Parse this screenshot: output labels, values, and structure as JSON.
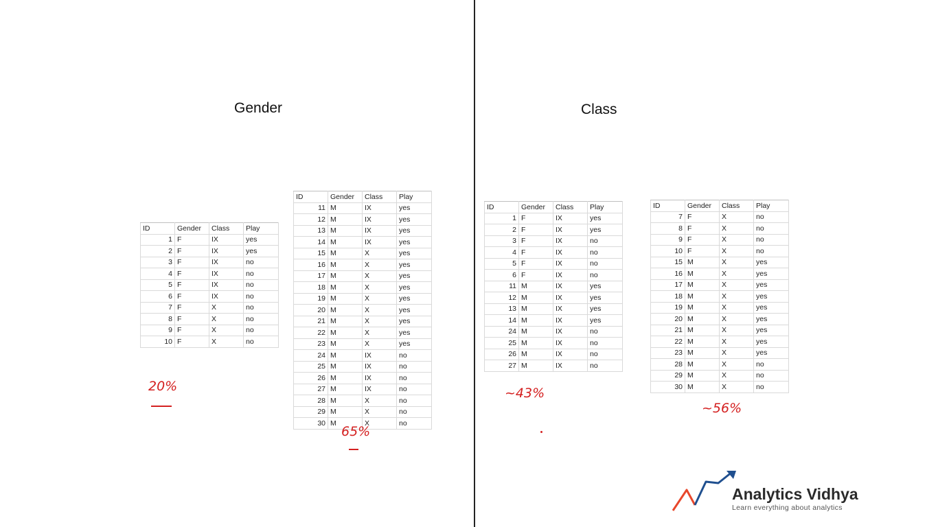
{
  "gender_panel": {
    "title": "Gender",
    "tables": [
      {
        "columns": [
          "ID",
          "Gender",
          "Class",
          "Play"
        ],
        "rows": [
          [
            "1",
            "F",
            "IX",
            "yes"
          ],
          [
            "2",
            "F",
            "IX",
            "yes"
          ],
          [
            "3",
            "F",
            "IX",
            "no"
          ],
          [
            "4",
            "F",
            "IX",
            "no"
          ],
          [
            "5",
            "F",
            "IX",
            "no"
          ],
          [
            "6",
            "F",
            "IX",
            "no"
          ],
          [
            "7",
            "F",
            "X",
            "no"
          ],
          [
            "8",
            "F",
            "X",
            "no"
          ],
          [
            "9",
            "F",
            "X",
            "no"
          ],
          [
            "10",
            "F",
            "X",
            "no"
          ]
        ]
      },
      {
        "columns": [
          "ID",
          "Gender",
          "Class",
          "Play"
        ],
        "rows": [
          [
            "11",
            "M",
            "IX",
            "yes"
          ],
          [
            "12",
            "M",
            "IX",
            "yes"
          ],
          [
            "13",
            "M",
            "IX",
            "yes"
          ],
          [
            "14",
            "M",
            "IX",
            "yes"
          ],
          [
            "15",
            "M",
            "X",
            "yes"
          ],
          [
            "16",
            "M",
            "X",
            "yes"
          ],
          [
            "17",
            "M",
            "X",
            "yes"
          ],
          [
            "18",
            "M",
            "X",
            "yes"
          ],
          [
            "19",
            "M",
            "X",
            "yes"
          ],
          [
            "20",
            "M",
            "X",
            "yes"
          ],
          [
            "21",
            "M",
            "X",
            "yes"
          ],
          [
            "22",
            "M",
            "X",
            "yes"
          ],
          [
            "23",
            "M",
            "X",
            "yes"
          ],
          [
            "24",
            "M",
            "IX",
            "no"
          ],
          [
            "25",
            "M",
            "IX",
            "no"
          ],
          [
            "26",
            "M",
            "IX",
            "no"
          ],
          [
            "27",
            "M",
            "IX",
            "no"
          ],
          [
            "28",
            "M",
            "X",
            "no"
          ],
          [
            "29",
            "M",
            "X",
            "no"
          ],
          [
            "30",
            "M",
            "X",
            "no"
          ]
        ]
      }
    ],
    "annotations": [
      "20%",
      "65%"
    ]
  },
  "class_panel": {
    "title": "Class",
    "tables": [
      {
        "columns": [
          "ID",
          "Gender",
          "Class",
          "Play"
        ],
        "rows": [
          [
            "1",
            "F",
            "IX",
            "yes"
          ],
          [
            "2",
            "F",
            "IX",
            "yes"
          ],
          [
            "3",
            "F",
            "IX",
            "no"
          ],
          [
            "4",
            "F",
            "IX",
            "no"
          ],
          [
            "5",
            "F",
            "IX",
            "no"
          ],
          [
            "6",
            "F",
            "IX",
            "no"
          ],
          [
            "11",
            "M",
            "IX",
            "yes"
          ],
          [
            "12",
            "M",
            "IX",
            "yes"
          ],
          [
            "13",
            "M",
            "IX",
            "yes"
          ],
          [
            "14",
            "M",
            "IX",
            "yes"
          ],
          [
            "24",
            "M",
            "IX",
            "no"
          ],
          [
            "25",
            "M",
            "IX",
            "no"
          ],
          [
            "26",
            "M",
            "IX",
            "no"
          ],
          [
            "27",
            "M",
            "IX",
            "no"
          ]
        ]
      },
      {
        "columns": [
          "ID",
          "Gender",
          "Class",
          "Play"
        ],
        "rows": [
          [
            "7",
            "F",
            "X",
            "no"
          ],
          [
            "8",
            "F",
            "X",
            "no"
          ],
          [
            "9",
            "F",
            "X",
            "no"
          ],
          [
            "10",
            "F",
            "X",
            "no"
          ],
          [
            "15",
            "M",
            "X",
            "yes"
          ],
          [
            "16",
            "M",
            "X",
            "yes"
          ],
          [
            "17",
            "M",
            "X",
            "yes"
          ],
          [
            "18",
            "M",
            "X",
            "yes"
          ],
          [
            "19",
            "M",
            "X",
            "yes"
          ],
          [
            "20",
            "M",
            "X",
            "yes"
          ],
          [
            "21",
            "M",
            "X",
            "yes"
          ],
          [
            "22",
            "M",
            "X",
            "yes"
          ],
          [
            "23",
            "M",
            "X",
            "yes"
          ],
          [
            "28",
            "M",
            "X",
            "no"
          ],
          [
            "29",
            "M",
            "X",
            "no"
          ],
          [
            "30",
            "M",
            "X",
            "no"
          ]
        ]
      }
    ],
    "annotations": [
      "~43%",
      "~56%"
    ]
  },
  "logo": {
    "name": "Analytics Vidhya",
    "tagline": "Learn everything about analytics",
    "colors": {
      "red": "#e8472b",
      "blue": "#1f4f8f"
    }
  }
}
